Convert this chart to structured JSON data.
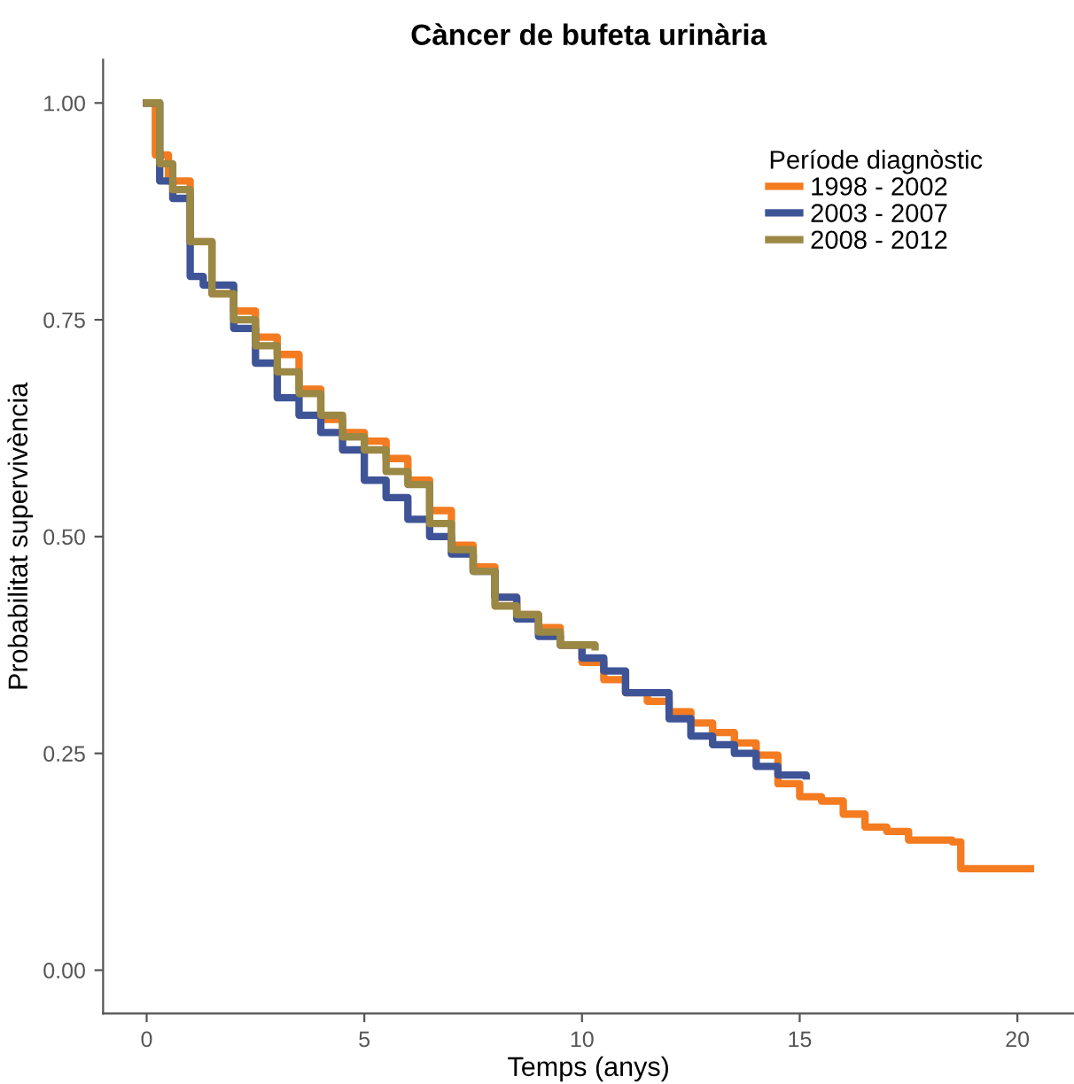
{
  "chart_data": {
    "type": "step",
    "title": "Càncer de bufeta urinària",
    "xlabel": "Temps (anys)",
    "ylabel": "Probabilitat supervivència",
    "legend_title": "Període diagnòstic",
    "legend": "top right",
    "grid": false,
    "xlim": [
      -1.0,
      21.3
    ],
    "ylim": [
      -0.05,
      1.05
    ],
    "xticks": [
      0,
      5,
      10,
      15,
      20
    ],
    "yticks": [
      {
        "value": 0,
        "label": "0.00"
      },
      {
        "value": 0.25,
        "label": "0.25"
      },
      {
        "value": 0.5,
        "label": "0.50"
      },
      {
        "value": 0.75,
        "label": "0.75"
      },
      {
        "value": 1,
        "label": "1.00"
      }
    ],
    "series": [
      {
        "name": "1998 - 2002",
        "color": "#f47b20",
        "x": [
          0,
          0.2,
          0.5,
          1,
          1.5,
          2,
          2.5,
          3,
          3.5,
          4,
          4.5,
          5,
          5.5,
          6,
          6.5,
          7,
          7.5,
          8,
          8.5,
          9,
          9.5,
          10,
          10.5,
          11,
          11.5,
          12,
          12.5,
          13,
          13.5,
          14,
          14.5,
          15,
          15.5,
          16,
          16.5,
          17,
          17.5,
          18.5,
          18.7,
          20.3
        ],
        "values": [
          1.0,
          0.94,
          0.91,
          0.84,
          0.78,
          0.76,
          0.73,
          0.71,
          0.67,
          0.635,
          0.62,
          0.61,
          0.59,
          0.565,
          0.53,
          0.49,
          0.465,
          0.43,
          0.41,
          0.395,
          0.375,
          0.355,
          0.335,
          0.32,
          0.31,
          0.298,
          0.285,
          0.274,
          0.262,
          0.248,
          0.215,
          0.2,
          0.195,
          0.18,
          0.165,
          0.16,
          0.15,
          0.148,
          0.117,
          0.117
        ]
      },
      {
        "name": "2003 - 2007",
        "color": "#3e5497",
        "x": [
          0,
          0.3,
          0.6,
          1,
          1.3,
          2,
          2.5,
          3,
          3.5,
          4,
          4.5,
          5,
          5.5,
          6,
          6.5,
          7,
          7.5,
          8,
          8.5,
          9,
          9.5,
          10,
          10.5,
          11,
          11.5,
          12,
          12.5,
          13,
          13.5,
          14,
          14.5,
          15.15
        ],
        "values": [
          1.0,
          0.91,
          0.89,
          0.8,
          0.79,
          0.74,
          0.7,
          0.66,
          0.64,
          0.62,
          0.6,
          0.565,
          0.545,
          0.52,
          0.5,
          0.48,
          0.46,
          0.43,
          0.405,
          0.385,
          0.375,
          0.36,
          0.345,
          0.32,
          0.32,
          0.29,
          0.27,
          0.26,
          0.25,
          0.235,
          0.225,
          0.224
        ]
      },
      {
        "name": "2008 - 2012",
        "color": "#9a8844",
        "x": [
          0,
          0.3,
          0.6,
          1,
          1.5,
          2,
          2.5,
          3,
          3.5,
          4,
          4.5,
          5,
          5.5,
          6,
          6.5,
          7,
          7.5,
          8,
          8.5,
          9,
          9.5,
          10.3
        ],
        "values": [
          1.0,
          0.93,
          0.9,
          0.84,
          0.78,
          0.75,
          0.72,
          0.69,
          0.665,
          0.64,
          0.615,
          0.6,
          0.575,
          0.56,
          0.515,
          0.485,
          0.46,
          0.42,
          0.41,
          0.39,
          0.375,
          0.373
        ]
      }
    ]
  }
}
